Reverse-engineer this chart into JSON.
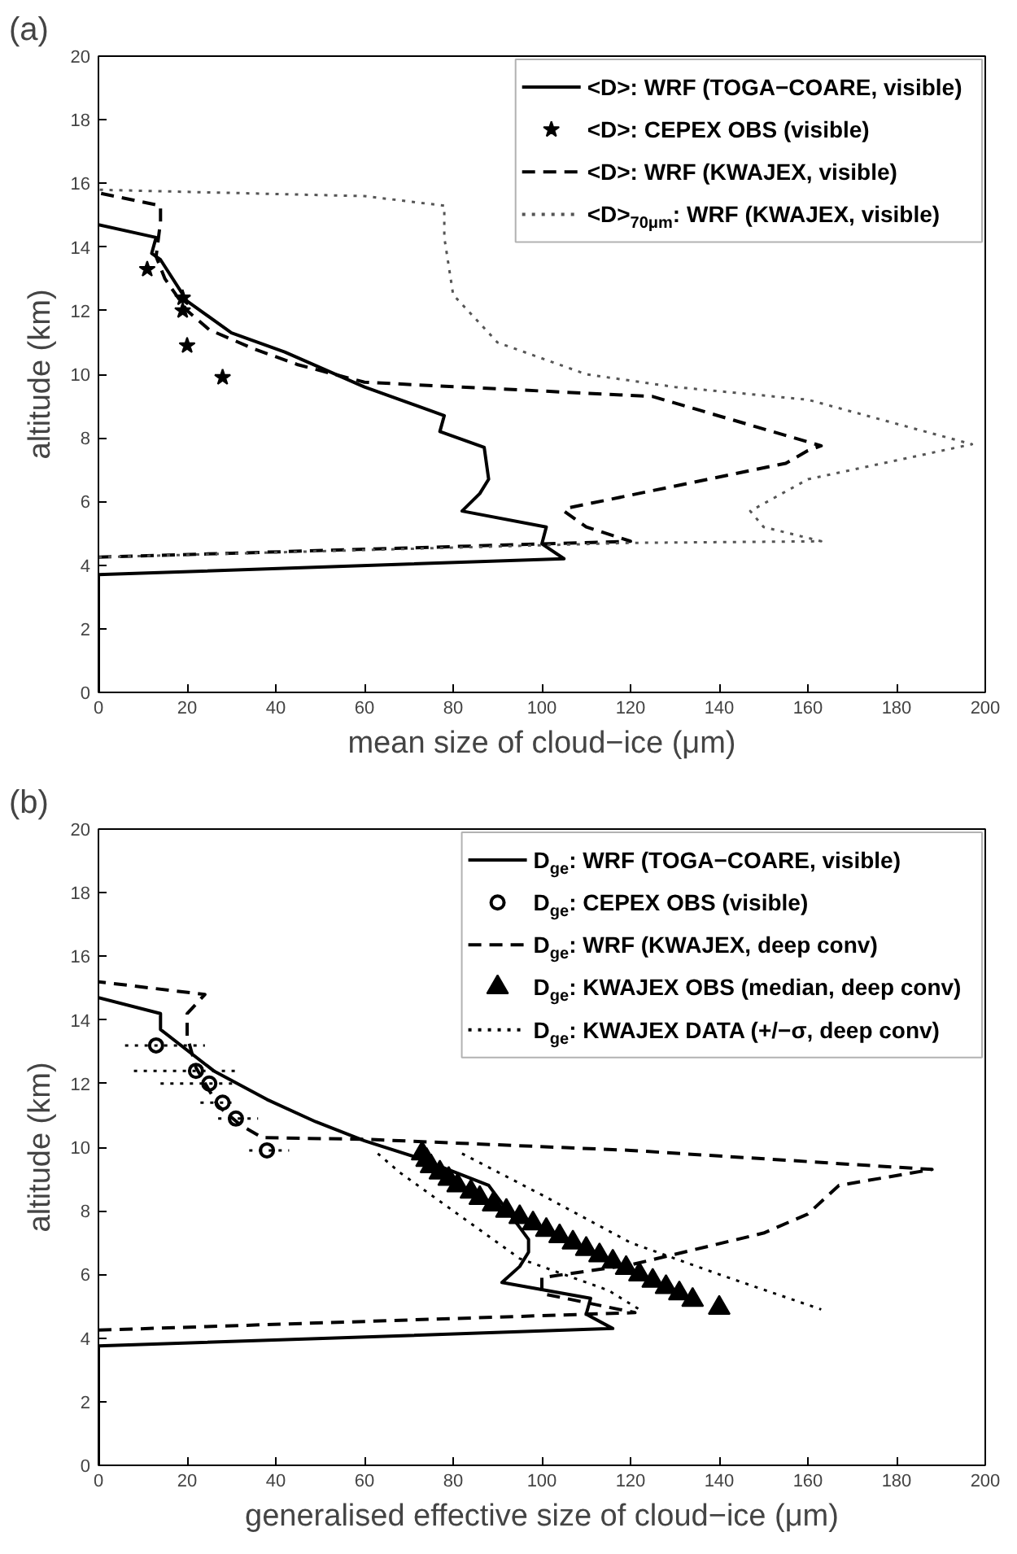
{
  "chart_data": [
    {
      "type": "line",
      "title": "(a)",
      "xlabel": "mean size of cloud−ice (μm)",
      "ylabel": "altitude (km)",
      "xlim": [
        0,
        200
      ],
      "ylim": [
        0,
        20
      ],
      "xticks": [
        0,
        20,
        40,
        60,
        80,
        100,
        120,
        140,
        160,
        180,
        200
      ],
      "yticks": [
        0,
        2,
        4,
        6,
        8,
        10,
        12,
        14,
        16,
        18,
        20
      ],
      "grid": false,
      "legend": "top right",
      "series": [
        {
          "name": "<D>: WRF (TOGA−COARE, visible)",
          "line_style": "solid",
          "color": "#000000",
          "x": [
            0,
            0,
            105,
            100,
            101,
            82,
            86,
            88,
            87,
            77,
            78,
            60,
            42,
            30,
            20,
            14,
            12,
            13,
            0
          ],
          "values": [
            0,
            3.7,
            4.2,
            4.67,
            5.2,
            5.7,
            6.25,
            6.7,
            7.7,
            8.2,
            8.7,
            9.6,
            10.7,
            11.3,
            12.3,
            13.6,
            13.8,
            14.3,
            14.7
          ]
        },
        {
          "name": "<D>: CEPEX OBS (visible)",
          "type": "scatter",
          "marker": "star",
          "color": "#000000",
          "x": [
            11,
            19,
            19,
            20,
            28
          ],
          "values": [
            13.3,
            12.4,
            12.0,
            10.9,
            9.9
          ]
        },
        {
          "name": "<D>: WRF (KWAJEX, visible)",
          "line_style": "dashed",
          "color": "#000000",
          "x": [
            0,
            120,
            110,
            105,
            106,
            155,
            160,
            163,
            125,
            60,
            45,
            35,
            25,
            20,
            15,
            13,
            14,
            14,
            0
          ],
          "values": [
            4.25,
            4.75,
            5.2,
            5.7,
            5.8,
            7.2,
            7.6,
            7.75,
            9.3,
            9.75,
            10.3,
            10.8,
            11.4,
            12.0,
            13.0,
            13.7,
            14.8,
            15.3,
            15.7
          ]
        },
        {
          "name": "<D>$_{70μm}$: WRF (KWAJEX, visible)",
          "line_style": "dotted",
          "color": "#555555",
          "x": [
            0,
            120,
            163,
            150,
            147,
            160,
            197,
            160,
            130,
            110,
            90,
            80,
            78,
            78,
            60,
            0
          ],
          "values": [
            4.25,
            4.7,
            4.75,
            5.2,
            5.7,
            6.7,
            7.8,
            9.2,
            9.6,
            10.0,
            11.0,
            12.5,
            14.3,
            15.3,
            15.6,
            15.8
          ]
        }
      ]
    },
    {
      "type": "line",
      "title": "(b)",
      "xlabel": "generalised effective size of cloud−ice (μm)",
      "ylabel": "altitude (km)",
      "xlim": [
        0,
        200
      ],
      "ylim": [
        0,
        20
      ],
      "xticks": [
        0,
        20,
        40,
        60,
        80,
        100,
        120,
        140,
        160,
        180,
        200
      ],
      "yticks": [
        0,
        2,
        4,
        6,
        8,
        10,
        12,
        14,
        16,
        18,
        20
      ],
      "grid": false,
      "legend": "top right",
      "series": [
        {
          "name": "D$_{ge}$: WRF (TOGA−COARE, visible)",
          "line_style": "solid",
          "color": "#000000",
          "x": [
            0,
            0,
            116,
            110,
            111,
            91,
            95,
            97,
            97,
            88,
            72,
            60,
            49,
            38,
            26,
            14,
            14,
            0
          ],
          "values": [
            0,
            3.75,
            4.3,
            4.75,
            5.25,
            5.75,
            6.25,
            6.7,
            7.1,
            8.8,
            9.67,
            10.2,
            10.8,
            11.5,
            12.4,
            13.7,
            14.2,
            14.7
          ]
        },
        {
          "name": "D$_{ge}$: CEPEX OBS (visible)",
          "type": "scatter",
          "marker": "circle",
          "color": "#000000",
          "x": [
            13,
            22,
            25,
            28,
            31,
            38
          ],
          "values": [
            13.2,
            12.4,
            12.0,
            11.4,
            10.9,
            9.9
          ],
          "xerrors": [
            [
              6,
              24
            ],
            [
              8,
              31
            ],
            [
              14,
              31
            ],
            [
              23,
              30
            ],
            [
              27,
              36
            ],
            [
              34,
              43
            ]
          ]
        },
        {
          "name": "D$_{ge}$: WRF (KWAJEX, deep conv)",
          "line_style": "dashed",
          "color": "#000000",
          "x": [
            0,
            121,
            100,
            100,
            120,
            150,
            160,
            167,
            188,
            120,
            60,
            37,
            32,
            27,
            22,
            20,
            20,
            24,
            0
          ],
          "values": [
            4.25,
            4.8,
            5.4,
            5.9,
            6.3,
            7.3,
            7.9,
            8.8,
            9.3,
            9.9,
            10.25,
            10.3,
            10.7,
            11.3,
            12.5,
            13.5,
            14.2,
            14.8,
            15.2
          ]
        },
        {
          "name": "D$_{ge}$: KWAJEX OBS (median, deep conv)",
          "type": "scatter",
          "marker": "triangle",
          "color": "#000000",
          "x": [
            73,
            74,
            75,
            77,
            79,
            81,
            84,
            86,
            89,
            92,
            95,
            98,
            101,
            104,
            107,
            110,
            113,
            116,
            119,
            122,
            125,
            128,
            131,
            134,
            140
          ],
          "values": [
            9.8,
            9.6,
            9.4,
            9.2,
            9.0,
            8.8,
            8.6,
            8.4,
            8.2,
            8.0,
            7.8,
            7.6,
            7.4,
            7.2,
            7.0,
            6.8,
            6.6,
            6.4,
            6.2,
            6.0,
            5.8,
            5.6,
            5.4,
            5.2,
            4.95
          ]
        },
        {
          "name": "D$_{ge}$: KWAJEX DATA (+/−σ, deep conv)",
          "line_style": "dotted",
          "color": "#000000",
          "x": [
            63,
            68,
            80,
            95,
            115,
            122
          ],
          "values": [
            9.8,
            9.2,
            8.0,
            6.5,
            5.5,
            4.9
          ]
        },
        {
          "line_style": "dotted",
          "color": "#000000",
          "x": [
            82,
            100,
            120,
            140,
            163
          ],
          "values": [
            9.8,
            8.5,
            7.0,
            6.0,
            4.9
          ]
        }
      ]
    }
  ]
}
